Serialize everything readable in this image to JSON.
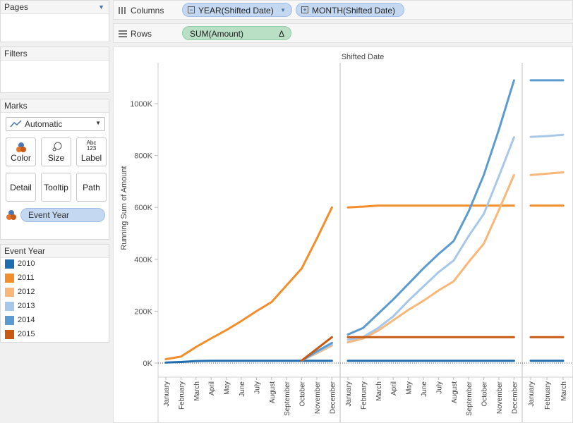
{
  "pages": {
    "title": "Pages"
  },
  "filters": {
    "title": "Filters"
  },
  "marks": {
    "title": "Marks",
    "mark_type": "Automatic",
    "buttons": [
      {
        "label": "Color",
        "icon": "color-icon"
      },
      {
        "label": "Size",
        "icon": "size-icon"
      },
      {
        "label": "Label",
        "icon": "label-icon",
        "icon_text": "Abc\n123"
      },
      {
        "label": "Detail"
      },
      {
        "label": "Tooltip"
      },
      {
        "label": "Path"
      }
    ],
    "color_field": "Event Year"
  },
  "legend": {
    "title": "Event Year",
    "items": [
      {
        "label": "2010",
        "color": "#1f6cae"
      },
      {
        "label": "2011",
        "color": "#f28e2b"
      },
      {
        "label": "2012",
        "color": "#f9b77a"
      },
      {
        "label": "2013",
        "color": "#a8c8ea"
      },
      {
        "label": "2014",
        "color": "#5b9bd0"
      },
      {
        "label": "2015",
        "color": "#c85a13"
      }
    ]
  },
  "shelves": {
    "columns_label": "Columns",
    "rows_label": "Rows",
    "columns_pills": [
      "YEAR(Shifted Date)",
      "MONTH(Shifted Date)"
    ],
    "rows_pill": "SUM(Amount)",
    "rows_pill_delta": "Δ"
  },
  "chart_data": {
    "type": "line",
    "title": "Shifted Date",
    "ylabel": "Running Sum of Amount",
    "ylim": [
      0,
      1200000
    ],
    "y_ticks": [
      0,
      200000,
      400000,
      600000,
      800000,
      1000000
    ],
    "y_tick_labels": [
      "0K",
      "200K",
      "400K",
      "600K",
      "800K",
      "1000K"
    ],
    "panes": [
      {
        "categories": [
          "January",
          "February",
          "March",
          "April",
          "May",
          "June",
          "July",
          "August",
          "September",
          "October",
          "November",
          "December"
        ],
        "series": [
          {
            "name": "2010",
            "color": "#1f6cae",
            "values": [
              2000,
              4000,
              8000,
              9000,
              9000,
              9000,
              9000,
              9000,
              9000,
              9000,
              9000,
              9000
            ]
          },
          {
            "name": "2011",
            "color": "#f28e2b",
            "values": [
              15000,
              25000,
              62000,
              95000,
              127000,
              162000,
              200000,
              235000,
              300000,
              365000,
              480000,
              600000
            ]
          },
          {
            "name": "2012",
            "color": "#f9b77a",
            "start": 9,
            "values": [
              10000,
              38000,
              68000
            ]
          },
          {
            "name": "2013",
            "color": "#a8c8ea",
            "start": 9,
            "values": [
              10000,
              42000,
              73000
            ]
          },
          {
            "name": "2014",
            "color": "#5b9bd0",
            "start": 9,
            "values": [
              10000,
              45000,
              78000
            ]
          },
          {
            "name": "2015",
            "color": "#c85a13",
            "start": 9,
            "values": [
              10000,
              55000,
              100000
            ]
          }
        ]
      },
      {
        "categories": [
          "January",
          "February",
          "March",
          "April",
          "May",
          "June",
          "July",
          "August",
          "September",
          "October",
          "November",
          "December"
        ],
        "series": [
          {
            "name": "2010",
            "color": "#1f6cae",
            "values": [
              9000,
              9000,
              9000,
              9000,
              9000,
              9000,
              9000,
              9000,
              9000,
              9000,
              9000,
              9000
            ]
          },
          {
            "name": "2011",
            "color": "#f28e2b",
            "values": [
              600000,
              603000,
              607000,
              607000,
              607000,
              607000,
              607000,
              607000,
              607000,
              607000,
              607000,
              607000
            ]
          },
          {
            "name": "2012",
            "color": "#f9b77a",
            "values": [
              80000,
              95000,
              125000,
              165000,
              205000,
              240000,
              280000,
              315000,
              390000,
              460000,
              590000,
              725000
            ]
          },
          {
            "name": "2013",
            "color": "#a8c8ea",
            "values": [
              90000,
              100000,
              135000,
              180000,
              240000,
              295000,
              350000,
              395000,
              490000,
              575000,
              720000,
              870000
            ]
          },
          {
            "name": "2014",
            "color": "#5b9bd0",
            "values": [
              110000,
              135000,
              190000,
              245000,
              305000,
              365000,
              420000,
              470000,
              585000,
              725000,
              900000,
              1090000
            ]
          },
          {
            "name": "2015",
            "color": "#c85a13",
            "values": [
              100000,
              100000,
              100000,
              100000,
              100000,
              100000,
              100000,
              100000,
              100000,
              100000,
              100000,
              100000
            ]
          }
        ]
      },
      {
        "categories": [
          "January",
          "February",
          "March"
        ],
        "series": [
          {
            "name": "2010",
            "color": "#1f6cae",
            "values": [
              9000,
              9000,
              9000
            ]
          },
          {
            "name": "2011",
            "color": "#f28e2b",
            "values": [
              607000,
              607000,
              607000
            ]
          },
          {
            "name": "2012",
            "color": "#f9b77a",
            "values": [
              725000,
              730000,
              735000
            ]
          },
          {
            "name": "2013",
            "color": "#a8c8ea",
            "values": [
              872000,
              875000,
              880000
            ]
          },
          {
            "name": "2014",
            "color": "#5b9bd0",
            "values": [
              1090000,
              1090000,
              1090000
            ]
          },
          {
            "name": "2015",
            "color": "#c85a13",
            "values": [
              100000,
              100000,
              100000
            ]
          }
        ]
      }
    ]
  }
}
